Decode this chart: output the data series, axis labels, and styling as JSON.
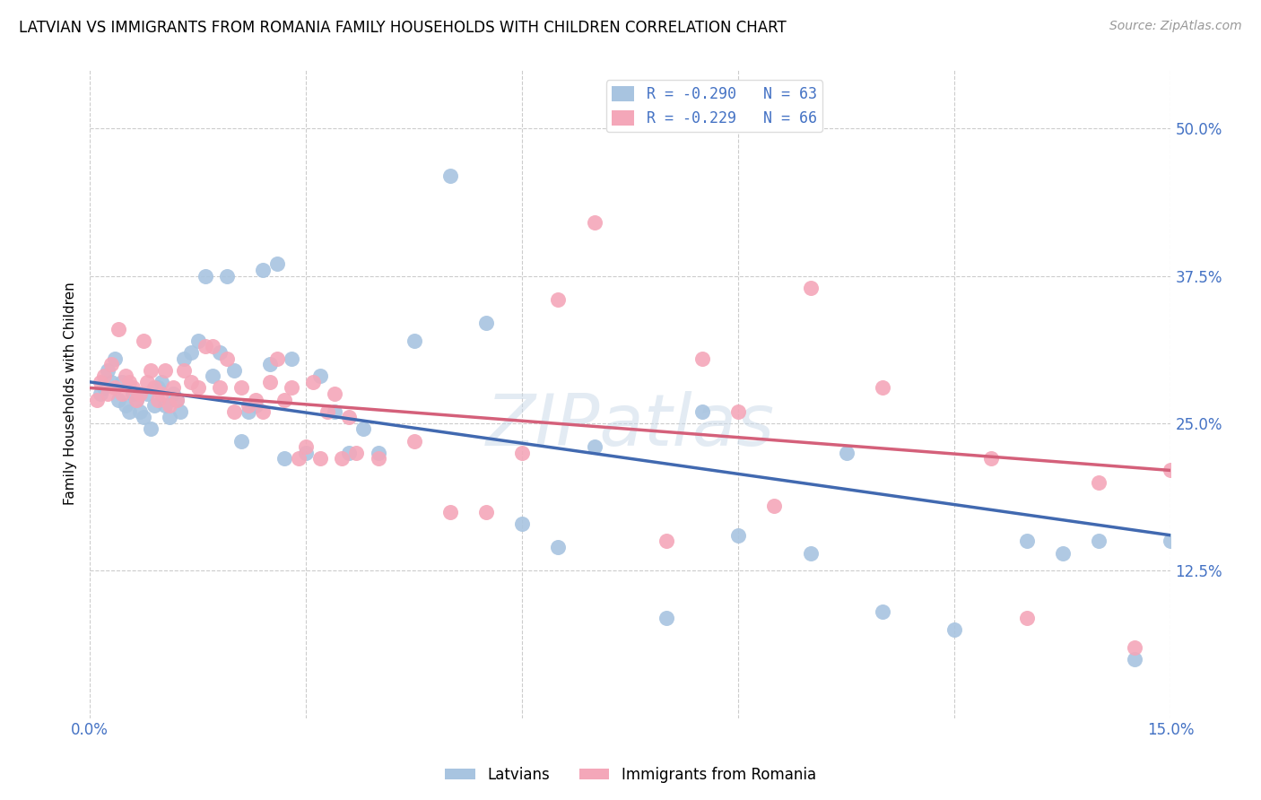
{
  "title": "LATVIAN VS IMMIGRANTS FROM ROMANIA FAMILY HOUSEHOLDS WITH CHILDREN CORRELATION CHART",
  "source": "Source: ZipAtlas.com",
  "ylabel": "Family Households with Children",
  "xmin": 0.0,
  "xmax": 15.0,
  "ymin": 0.0,
  "ymax": 55.0,
  "yticks": [
    12.5,
    25.0,
    37.5,
    50.0
  ],
  "xtick_labels": [
    "0.0%",
    "",
    "",
    "",
    "",
    "15.0%"
  ],
  "xtick_pos": [
    0,
    3,
    6,
    9,
    12,
    15
  ],
  "legend_latvian": "R = -0.290   N = 63",
  "legend_romania": "R = -0.229   N = 66",
  "legend_label_latvian": "Latvians",
  "legend_label_romania": "Immigrants from Romania",
  "color_latvian": "#a8c4e0",
  "color_romania": "#f4a7b9",
  "color_line_latvian": "#4169b0",
  "color_line_romania": "#d4607a",
  "watermark": "ZIPatlas",
  "latvian_x": [
    0.15,
    0.2,
    0.25,
    0.3,
    0.35,
    0.4,
    0.45,
    0.5,
    0.55,
    0.6,
    0.65,
    0.7,
    0.75,
    0.8,
    0.85,
    0.9,
    0.95,
    1.0,
    1.05,
    1.1,
    1.15,
    1.2,
    1.3,
    1.4,
    1.5,
    1.6,
    1.7,
    1.8,
    1.9,
    2.0,
    2.1,
    2.2,
    2.4,
    2.5,
    2.6,
    2.8,
    3.0,
    3.2,
    3.4,
    3.6,
    3.8,
    4.0,
    4.5,
    5.0,
    5.5,
    6.0,
    6.5,
    7.0,
    8.0,
    8.5,
    9.0,
    10.0,
    10.5,
    11.0,
    12.0,
    13.0,
    13.5,
    14.0,
    14.5,
    15.0,
    2.3,
    2.7,
    1.25
  ],
  "latvian_y": [
    27.5,
    28.0,
    29.5,
    28.5,
    30.5,
    27.0,
    28.5,
    26.5,
    26.0,
    27.5,
    27.0,
    26.0,
    25.5,
    27.5,
    24.5,
    26.5,
    28.0,
    28.5,
    26.5,
    25.5,
    27.5,
    27.0,
    30.5,
    31.0,
    32.0,
    37.5,
    29.0,
    31.0,
    37.5,
    29.5,
    23.5,
    26.0,
    38.0,
    30.0,
    38.5,
    30.5,
    22.5,
    29.0,
    26.0,
    22.5,
    24.5,
    22.5,
    32.0,
    46.0,
    33.5,
    16.5,
    14.5,
    23.0,
    8.5,
    26.0,
    15.5,
    14.0,
    22.5,
    9.0,
    7.5,
    15.0,
    14.0,
    15.0,
    5.0,
    15.0,
    26.5,
    22.0,
    26.0
  ],
  "romania_x": [
    0.1,
    0.15,
    0.2,
    0.25,
    0.3,
    0.35,
    0.4,
    0.45,
    0.5,
    0.55,
    0.6,
    0.65,
    0.7,
    0.75,
    0.8,
    0.85,
    0.9,
    0.95,
    1.0,
    1.05,
    1.1,
    1.15,
    1.2,
    1.3,
    1.4,
    1.5,
    1.6,
    1.7,
    1.8,
    1.9,
    2.0,
    2.1,
    2.2,
    2.3,
    2.4,
    2.5,
    2.6,
    2.7,
    2.8,
    2.9,
    3.0,
    3.1,
    3.2,
    3.3,
    3.4,
    3.5,
    3.6,
    3.7,
    4.0,
    4.5,
    5.0,
    5.5,
    6.0,
    7.0,
    8.0,
    8.5,
    9.0,
    10.0,
    11.0,
    12.5,
    13.0,
    14.0,
    14.5,
    15.0,
    6.5,
    9.5
  ],
  "romania_y": [
    27.0,
    28.5,
    29.0,
    27.5,
    30.0,
    28.0,
    33.0,
    27.5,
    29.0,
    28.5,
    28.0,
    27.0,
    27.5,
    32.0,
    28.5,
    29.5,
    28.0,
    27.0,
    27.5,
    29.5,
    26.5,
    28.0,
    27.0,
    29.5,
    28.5,
    28.0,
    31.5,
    31.5,
    28.0,
    30.5,
    26.0,
    28.0,
    26.5,
    27.0,
    26.0,
    28.5,
    30.5,
    27.0,
    28.0,
    22.0,
    23.0,
    28.5,
    22.0,
    26.0,
    27.5,
    22.0,
    25.5,
    22.5,
    22.0,
    23.5,
    17.5,
    17.5,
    22.5,
    42.0,
    15.0,
    30.5,
    26.0,
    36.5,
    28.0,
    22.0,
    8.5,
    20.0,
    6.0,
    21.0,
    35.5,
    18.0
  ]
}
